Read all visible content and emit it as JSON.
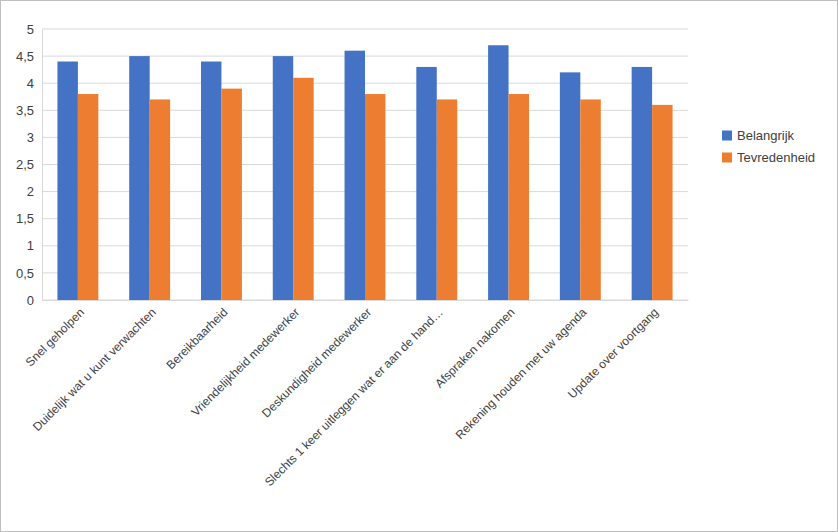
{
  "chart_data": {
    "type": "bar",
    "categories": [
      "Snel geholpen",
      "Duidelijk wat u kunt verwachten",
      "Bereikbaarheid",
      "Vriendelijkheid medewerker",
      "Deskundigheid medewerker",
      "Slechts 1 keer uitleggen wat er aan de hand…",
      "Afspraken nakomen",
      "Rekening houden met uw agenda",
      "Update over voortgang"
    ],
    "series": [
      {
        "name": "Belangrijk",
        "color": "#4472c4",
        "values": [
          4.4,
          4.5,
          4.4,
          4.5,
          4.6,
          4.3,
          4.7,
          4.2,
          4.3
        ]
      },
      {
        "name": "Tevredenheid",
        "color": "#ed7d31",
        "values": [
          3.8,
          3.7,
          3.9,
          4.1,
          3.8,
          3.7,
          3.8,
          3.7,
          3.6
        ]
      }
    ],
    "ylim": [
      0,
      5
    ],
    "yticks": [
      0,
      {
        "value": 0.5,
        "label": "0,5"
      },
      1,
      {
        "value": 1.5,
        "label": "1,5"
      },
      2,
      {
        "value": 2.5,
        "label": "2,5"
      },
      3,
      {
        "value": 3.5,
        "label": "3,5"
      },
      4,
      {
        "value": 4.5,
        "label": "4,5"
      },
      5
    ],
    "grid": true,
    "legend": "right"
  }
}
